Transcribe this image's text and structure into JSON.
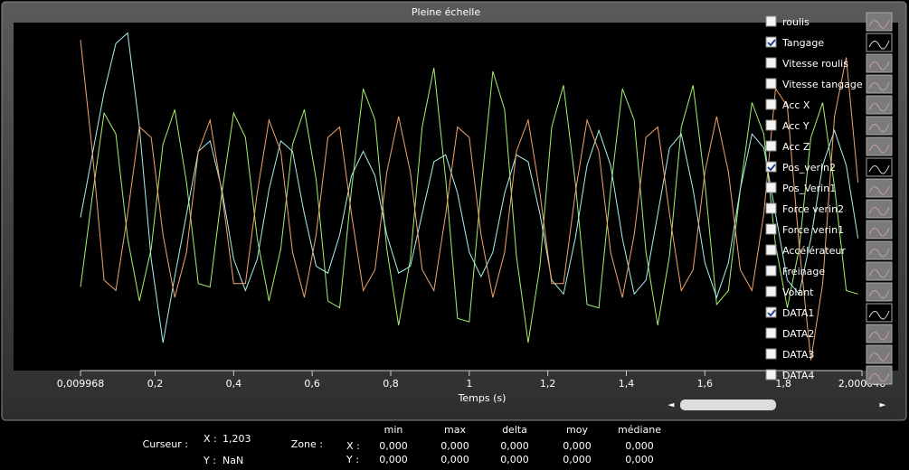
{
  "window_title": "Pleine échelle",
  "chart_data": {
    "type": "line",
    "x_label": "Temps (s)",
    "x": [
      0.01,
      0.04,
      0.07,
      0.1,
      0.13,
      0.16,
      0.19,
      0.22,
      0.25,
      0.28,
      0.31,
      0.34,
      0.37,
      0.4,
      0.43,
      0.46,
      0.49,
      0.52,
      0.55,
      0.58,
      0.61,
      0.64,
      0.67,
      0.7,
      0.73,
      0.76,
      0.79,
      0.82,
      0.85,
      0.88,
      0.91,
      0.94,
      0.97,
      1.0,
      1.03,
      1.06,
      1.09,
      1.12,
      1.15,
      1.18,
      1.21,
      1.24,
      1.27,
      1.3,
      1.33,
      1.36,
      1.39,
      1.42,
      1.45,
      1.48,
      1.51,
      1.54,
      1.57,
      1.6,
      1.63,
      1.66,
      1.69,
      1.72,
      1.75,
      1.78,
      1.81,
      1.84,
      1.87,
      1.9,
      1.93,
      1.96,
      1.99
    ],
    "xlim": [
      0.009968,
      2.000048
    ],
    "xticks": [
      {
        "value": 0.009968,
        "label": "0,009968"
      },
      {
        "value": 0.2,
        "label": "0,2"
      },
      {
        "value": 0.4,
        "label": "0,4"
      },
      {
        "value": 0.6,
        "label": "0,6"
      },
      {
        "value": 0.8,
        "label": "0,8"
      },
      1,
      {
        "value": 1.2,
        "label": "1,2"
      },
      {
        "value": 1.4,
        "label": "1,4"
      },
      {
        "value": 1.6,
        "label": "1,6"
      },
      {
        "value": 1.8,
        "label": "1,8"
      },
      {
        "value": 2.000048,
        "label": "2,000048"
      }
    ],
    "ylim": [
      0,
      100
    ],
    "series": [
      {
        "color": "#a6f06a",
        "values": [
          24,
          50,
          74,
          68,
          38,
          20,
          35,
          65,
          75,
          54,
          25,
          24,
          51,
          74,
          67,
          38,
          20,
          35,
          65,
          75,
          55,
          20,
          18,
          52,
          81,
          72,
          35,
          13,
          32,
          70,
          87,
          55,
          15,
          14,
          52,
          86,
          75,
          33,
          8,
          30,
          70,
          82,
          54,
          19,
          18,
          52,
          81,
          72,
          34,
          13,
          33,
          70,
          82,
          54,
          19,
          23,
          52,
          77,
          68,
          36,
          18,
          35,
          67,
          77,
          53,
          23,
          22
        ]
      },
      {
        "color": "#a8f2ee",
        "values": [
          44,
          62,
          80,
          94,
          97,
          70,
          32,
          8,
          27,
          45,
          63,
          66,
          52,
          32,
          23,
          32,
          52,
          66,
          63,
          45,
          30,
          28,
          39,
          56,
          63,
          56,
          39,
          28,
          30,
          45,
          60,
          62,
          51,
          34,
          27,
          34,
          51,
          62,
          60,
          45,
          26,
          22,
          38,
          59,
          69,
          59,
          38,
          22,
          26,
          45,
          64,
          68,
          52,
          31,
          21,
          31,
          52,
          68,
          64,
          45,
          26,
          22,
          38,
          59,
          69,
          59,
          38
        ]
      },
      {
        "color": "#f4a46a",
        "values": [
          95,
          63,
          26,
          23,
          45,
          70,
          67,
          39,
          21,
          34,
          63,
          72,
          51,
          25,
          25,
          51,
          72,
          63,
          34,
          21,
          39,
          67,
          70,
          45,
          23,
          29,
          57,
          73,
          57,
          29,
          23,
          45,
          70,
          67,
          39,
          21,
          34,
          63,
          72,
          51,
          25,
          25,
          51,
          72,
          63,
          34,
          21,
          39,
          67,
          70,
          45,
          23,
          29,
          57,
          73,
          57,
          29,
          23,
          45,
          81,
          76,
          36,
          3,
          25,
          73,
          90,
          54
        ]
      }
    ]
  },
  "legend": [
    {
      "label": "roulis",
      "checked": false
    },
    {
      "label": "Tangage",
      "checked": true
    },
    {
      "label": "Vitesse roulis",
      "checked": false
    },
    {
      "label": "Vitesse tangage",
      "checked": false
    },
    {
      "label": "Acc X",
      "checked": false
    },
    {
      "label": "Acc Y",
      "checked": false
    },
    {
      "label": "Acc Z",
      "checked": false
    },
    {
      "label": "Pos_verin2",
      "checked": true
    },
    {
      "label": "Pos_Verin1",
      "checked": false
    },
    {
      "label": "Force verin2",
      "checked": false
    },
    {
      "label": "Force verin1",
      "checked": false
    },
    {
      "label": "Accélérateur",
      "checked": false
    },
    {
      "label": "Freinage",
      "checked": false
    },
    {
      "label": "Volant",
      "checked": false
    },
    {
      "label": "DATA1",
      "checked": true
    },
    {
      "label": "DATA2",
      "checked": false
    },
    {
      "label": "DATA3",
      "checked": false
    },
    {
      "label": "DATA4",
      "checked": false
    }
  ],
  "cursor": {
    "label": "Curseur :",
    "x_label": "X :",
    "x": "1,203",
    "y_label": "Y :",
    "y": "NaN"
  },
  "zone": {
    "label": "Zone :",
    "columns": [
      "min",
      "max",
      "delta",
      "moy",
      "médiane"
    ],
    "rows": [
      {
        "label": "X :",
        "values": [
          "0,000",
          "0,000",
          "0,000",
          "0,000",
          "0,000"
        ]
      },
      {
        "label": "Y :",
        "values": [
          "0,000",
          "0,000",
          "0,000",
          "0,000",
          "0,000"
        ]
      }
    ]
  }
}
